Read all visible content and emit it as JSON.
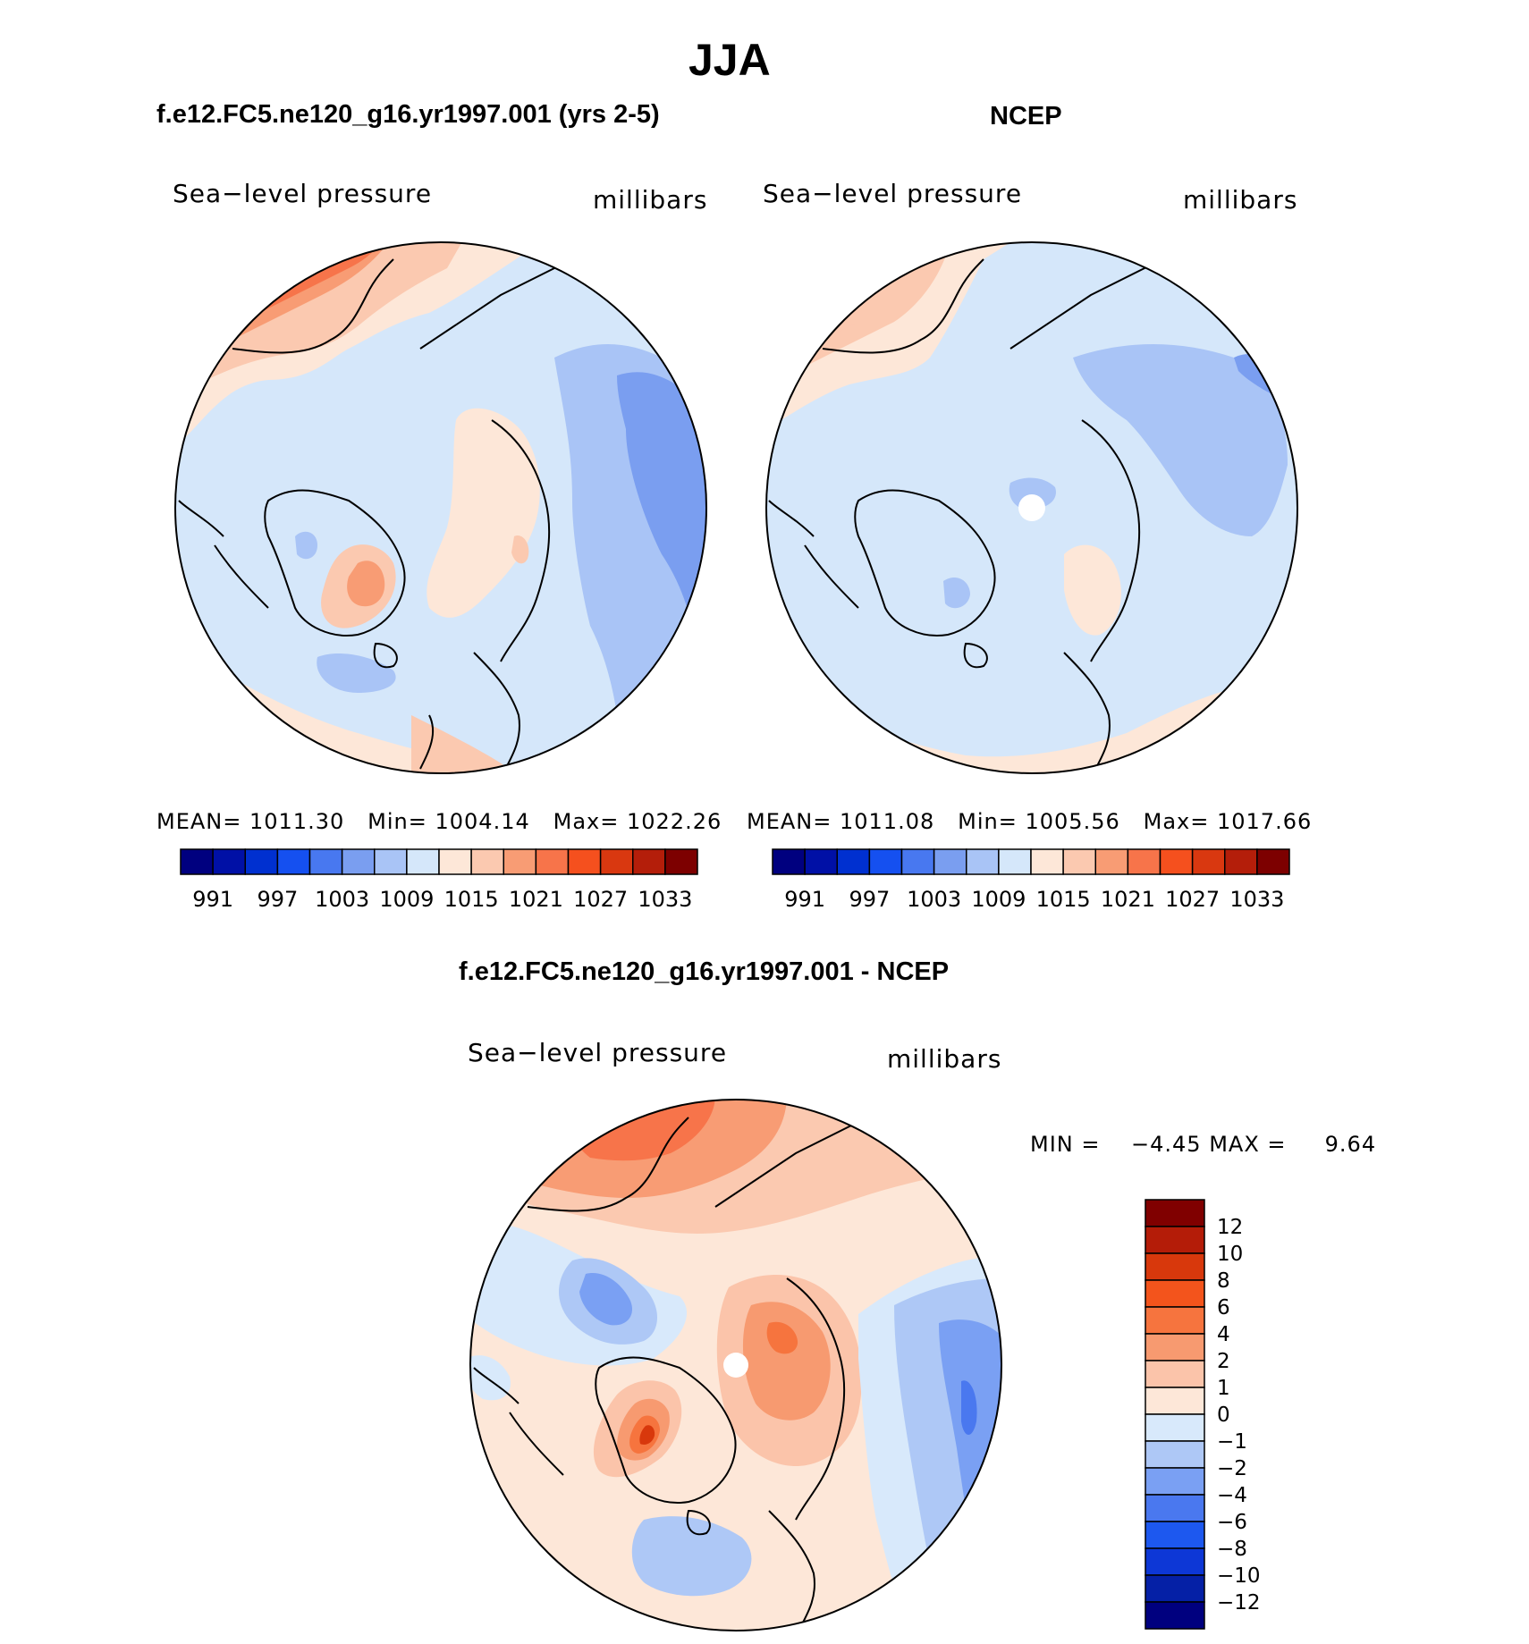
{
  "figure": {
    "season_title": "JJA",
    "colors": {
      "palette_absolute": [
        "#00007f",
        "#0010a6",
        "#0030d0",
        "#1550f0",
        "#4878f0",
        "#7a9ef0",
        "#a9c4f6",
        "#d5e7fa",
        "#fde7d8",
        "#fbc9b0",
        "#f89c74",
        "#f7744a",
        "#f5501e",
        "#d93810",
        "#b41e0a",
        "#7d0000"
      ],
      "palette_difference": [
        "#00007f",
        "#0520a6",
        "#0d37d6",
        "#1d58ef",
        "#4a78ef",
        "#7aa0f3",
        "#aec8f6",
        "#d8e9fb",
        "#fde7d8",
        "#fbc4aa",
        "#f79a70",
        "#f6743e",
        "#f3541c",
        "#d8380c",
        "#b41c08",
        "#800000"
      ]
    }
  },
  "chart_data": [
    {
      "type": "polar-contour-map",
      "panel": "model",
      "title": "f.e12.FC5.ne120_g16.yr1997.001 (yrs 2-5)",
      "variable_label": "Sea−level pressure",
      "units_label": "millibars",
      "stats": {
        "mean_label": "MEAN=",
        "mean": "1011.30",
        "min_label": "Min=",
        "min": "1004.14",
        "max_label": "Max=",
        "max": "1022.26"
      },
      "contour_levels": [
        988,
        991,
        994,
        997,
        1000,
        1003,
        1006,
        1009,
        1012,
        1015,
        1018,
        1021,
        1024,
        1027,
        1030,
        1033
      ],
      "colorbar_tick_labels": [
        "991",
        "997",
        "1003",
        "1009",
        "1015",
        "1021",
        "1027",
        "1033"
      ]
    },
    {
      "type": "polar-contour-map",
      "panel": "observations",
      "title": "NCEP",
      "variable_label": "Sea−level pressure",
      "units_label": "millibars",
      "stats": {
        "mean_label": "MEAN=",
        "mean": "1011.08",
        "min_label": "Min=",
        "min": "1005.56",
        "max_label": "Max=",
        "max": "1017.66"
      },
      "contour_levels": [
        988,
        991,
        994,
        997,
        1000,
        1003,
        1006,
        1009,
        1012,
        1015,
        1018,
        1021,
        1024,
        1027,
        1030,
        1033
      ],
      "colorbar_tick_labels": [
        "991",
        "997",
        "1003",
        "1009",
        "1015",
        "1021",
        "1027",
        "1033"
      ]
    },
    {
      "type": "polar-contour-map",
      "panel": "difference",
      "title": "f.e12.FC5.ne120_g16.yr1997.001 - NCEP",
      "variable_label": "Sea−level pressure",
      "units_label": "millibars",
      "stats": {
        "min_label": "MIN =",
        "min": "−4.45",
        "max_label": "MAX =",
        "max": "9.64"
      },
      "contour_levels": [
        -12,
        -10,
        -8,
        -6,
        -4,
        -2,
        -1,
        0,
        1,
        2,
        4,
        6,
        8,
        10,
        12
      ],
      "colorbar_tick_labels": [
        "12",
        "10",
        "8",
        "6",
        "4",
        "2",
        "1",
        "0",
        "−1",
        "−2",
        "−4",
        "−6",
        "−8",
        "−10",
        "−12"
      ]
    }
  ]
}
